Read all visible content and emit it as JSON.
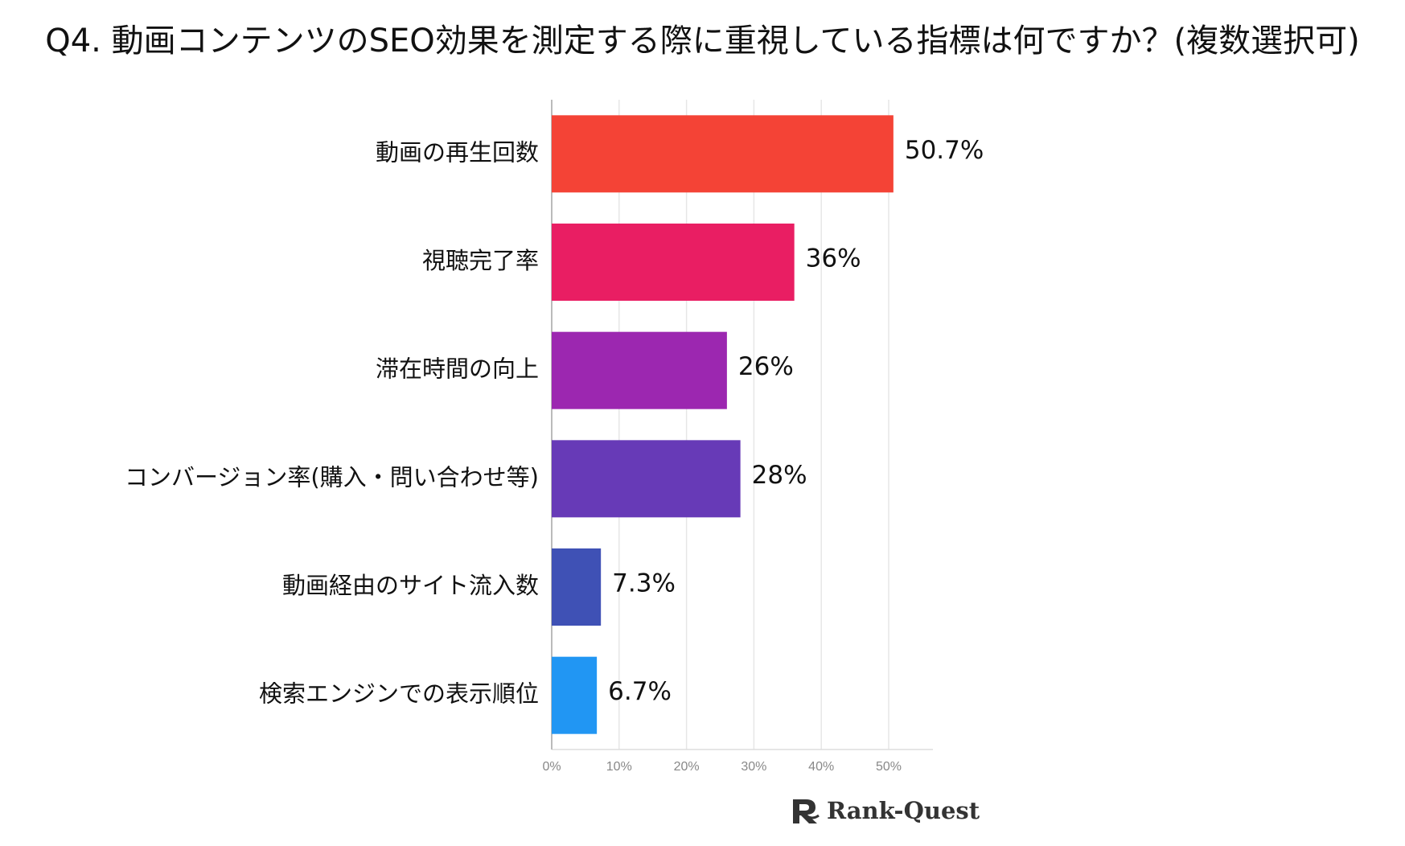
{
  "title": "Q4. 動画コンテンツのSEO効果を測定する際に重視している指標は何ですか？(複数選択可)",
  "brand": "Rank-Quest",
  "chart_data": {
    "type": "bar",
    "orientation": "horizontal",
    "categories": [
      "動画の再生回数",
      "視聴完了率",
      "滞在時間の向上",
      "コンバージョン率(購入・問い合わせ等)",
      "動画経由のサイト流入数",
      "検索エンジンでの表示順位"
    ],
    "values": [
      50.7,
      36,
      26,
      28,
      7.3,
      6.7
    ],
    "value_labels": [
      "50.7%",
      "36%",
      "26%",
      "28%",
      "7.3%",
      "6.7%"
    ],
    "colors": [
      "#f44336",
      "#e91e63",
      "#9c27b0",
      "#673ab7",
      "#3f51b5",
      "#2196f3"
    ],
    "x_ticks": [
      "0%",
      "10%",
      "20%",
      "30%",
      "40%",
      "50%"
    ],
    "xlim": [
      0,
      56
    ],
    "grid": true
  }
}
